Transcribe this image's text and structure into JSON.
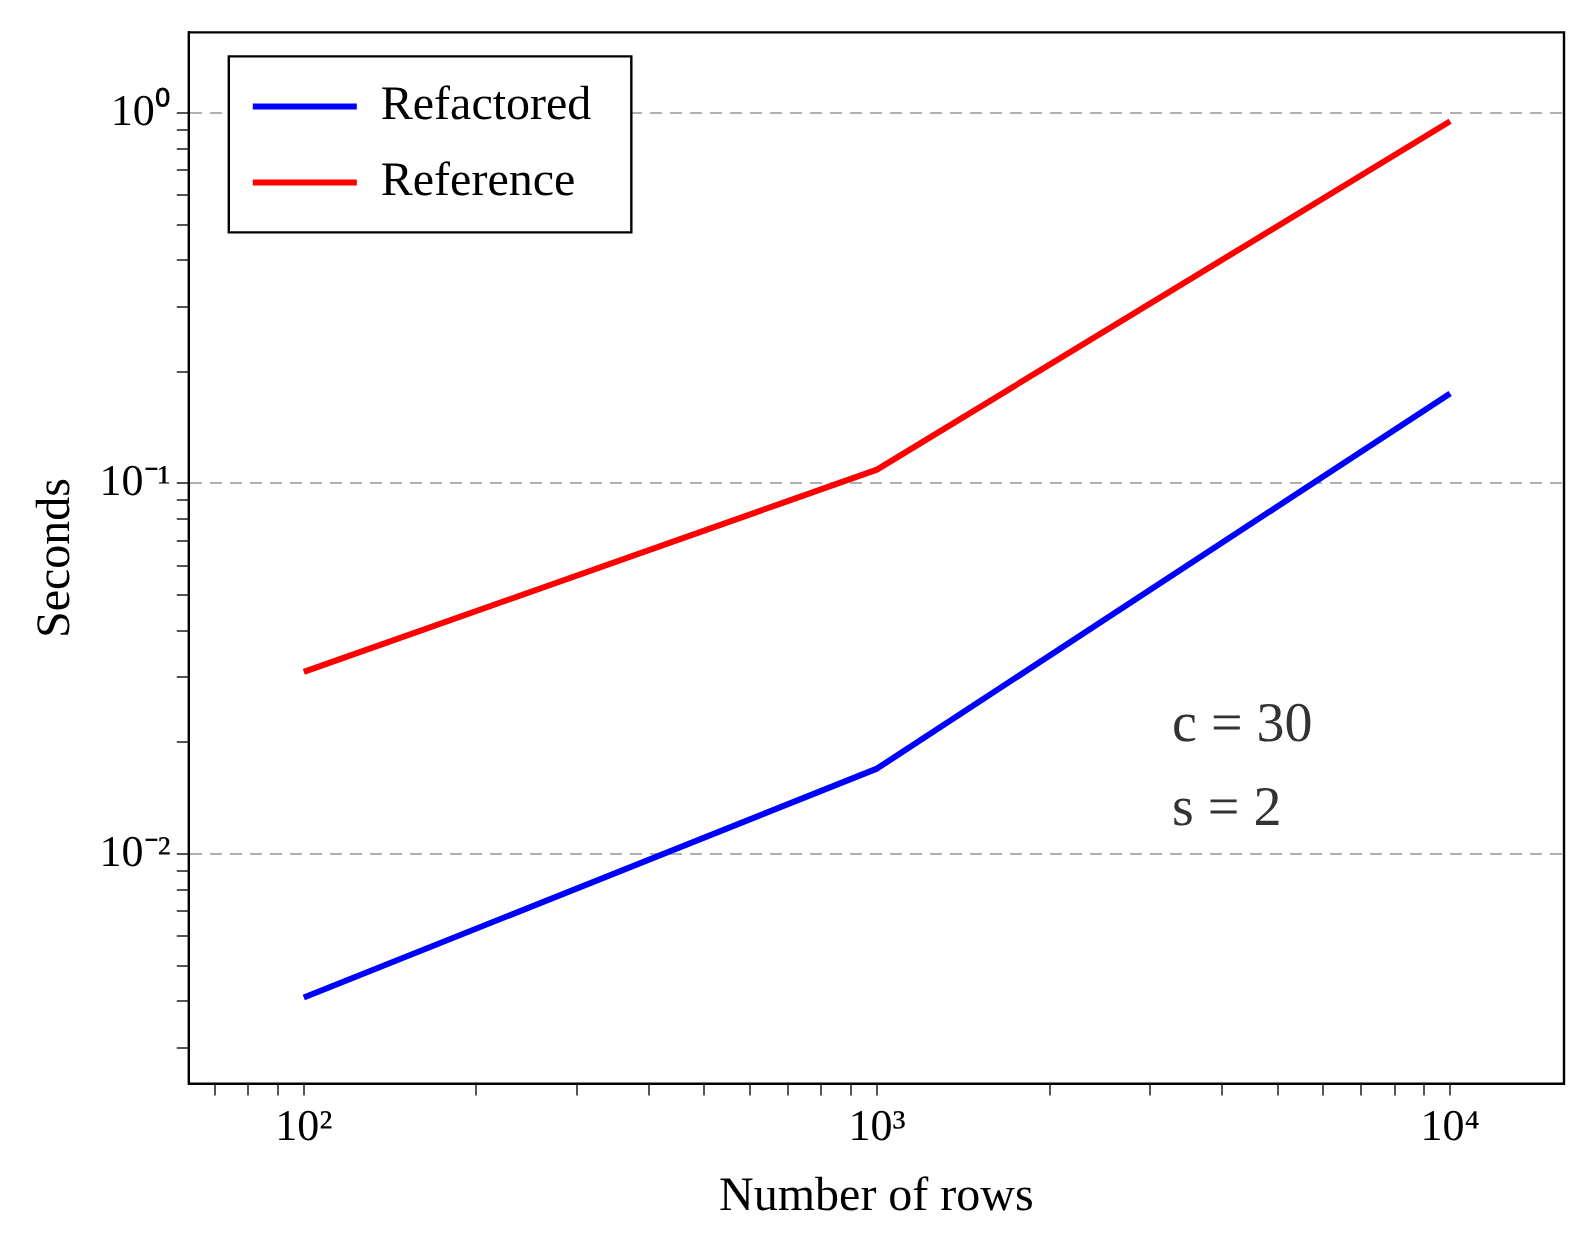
{
  "chart_data": {
    "type": "line",
    "xlabel": "Number of rows",
    "ylabel": "Seconds",
    "x": [
      100,
      1000,
      10000
    ],
    "series": [
      {
        "name": "Refactored",
        "color": "#0000ff",
        "values": [
          0.0041,
          0.017,
          0.175
        ]
      },
      {
        "name": "Reference",
        "color": "#ff0000",
        "values": [
          0.031,
          0.109,
          0.95
        ]
      }
    ],
    "log": "xy",
    "xlim": [
      63,
      15800
    ],
    "ylim": [
      0.0024,
      1.65
    ],
    "xticks": [
      {
        "value": 70,
        "label": null
      },
      {
        "value": 80,
        "label": null
      },
      {
        "value": 90,
        "label": null
      },
      {
        "value": 100,
        "label": "10²"
      },
      {
        "value": 200,
        "label": null
      },
      {
        "value": 300,
        "label": null
      },
      {
        "value": 400,
        "label": null
      },
      {
        "value": 500,
        "label": null
      },
      {
        "value": 600,
        "label": null
      },
      {
        "value": 700,
        "label": null
      },
      {
        "value": 800,
        "label": null
      },
      {
        "value": 900,
        "label": null
      },
      {
        "value": 1000,
        "label": "10³"
      },
      {
        "value": 2000,
        "label": null
      },
      {
        "value": 3000,
        "label": null
      },
      {
        "value": 4000,
        "label": null
      },
      {
        "value": 5000,
        "label": null
      },
      {
        "value": 6000,
        "label": null
      },
      {
        "value": 7000,
        "label": null
      },
      {
        "value": 8000,
        "label": null
      },
      {
        "value": 9000,
        "label": null
      },
      {
        "value": 10000,
        "label": "10⁴"
      }
    ],
    "yticks": [
      {
        "value": 0.003,
        "label": null
      },
      {
        "value": 0.004,
        "label": null
      },
      {
        "value": 0.005,
        "label": null
      },
      {
        "value": 0.006,
        "label": null
      },
      {
        "value": 0.007,
        "label": null
      },
      {
        "value": 0.008,
        "label": null
      },
      {
        "value": 0.009,
        "label": null
      },
      {
        "value": 0.01,
        "label": "10⁻²"
      },
      {
        "value": 0.02,
        "label": null
      },
      {
        "value": 0.03,
        "label": null
      },
      {
        "value": 0.04,
        "label": null
      },
      {
        "value": 0.05,
        "label": null
      },
      {
        "value": 0.06,
        "label": null
      },
      {
        "value": 0.07,
        "label": null
      },
      {
        "value": 0.08,
        "label": null
      },
      {
        "value": 0.09,
        "label": null
      },
      {
        "value": 0.1,
        "label": "10⁻¹"
      },
      {
        "value": 0.2,
        "label": null
      },
      {
        "value": 0.3,
        "label": null
      },
      {
        "value": 0.4,
        "label": null
      },
      {
        "value": 0.5,
        "label": null
      },
      {
        "value": 0.6,
        "label": null
      },
      {
        "value": 0.7,
        "label": null
      },
      {
        "value": 0.8,
        "label": null
      },
      {
        "value": 0.9,
        "label": null
      },
      {
        "value": 1,
        "label": "10⁰"
      }
    ],
    "grid": "y",
    "legend": "top left",
    "marker": "none",
    "line_style": "solid",
    "annotations": [
      "c = 30",
      "s = 2"
    ]
  }
}
